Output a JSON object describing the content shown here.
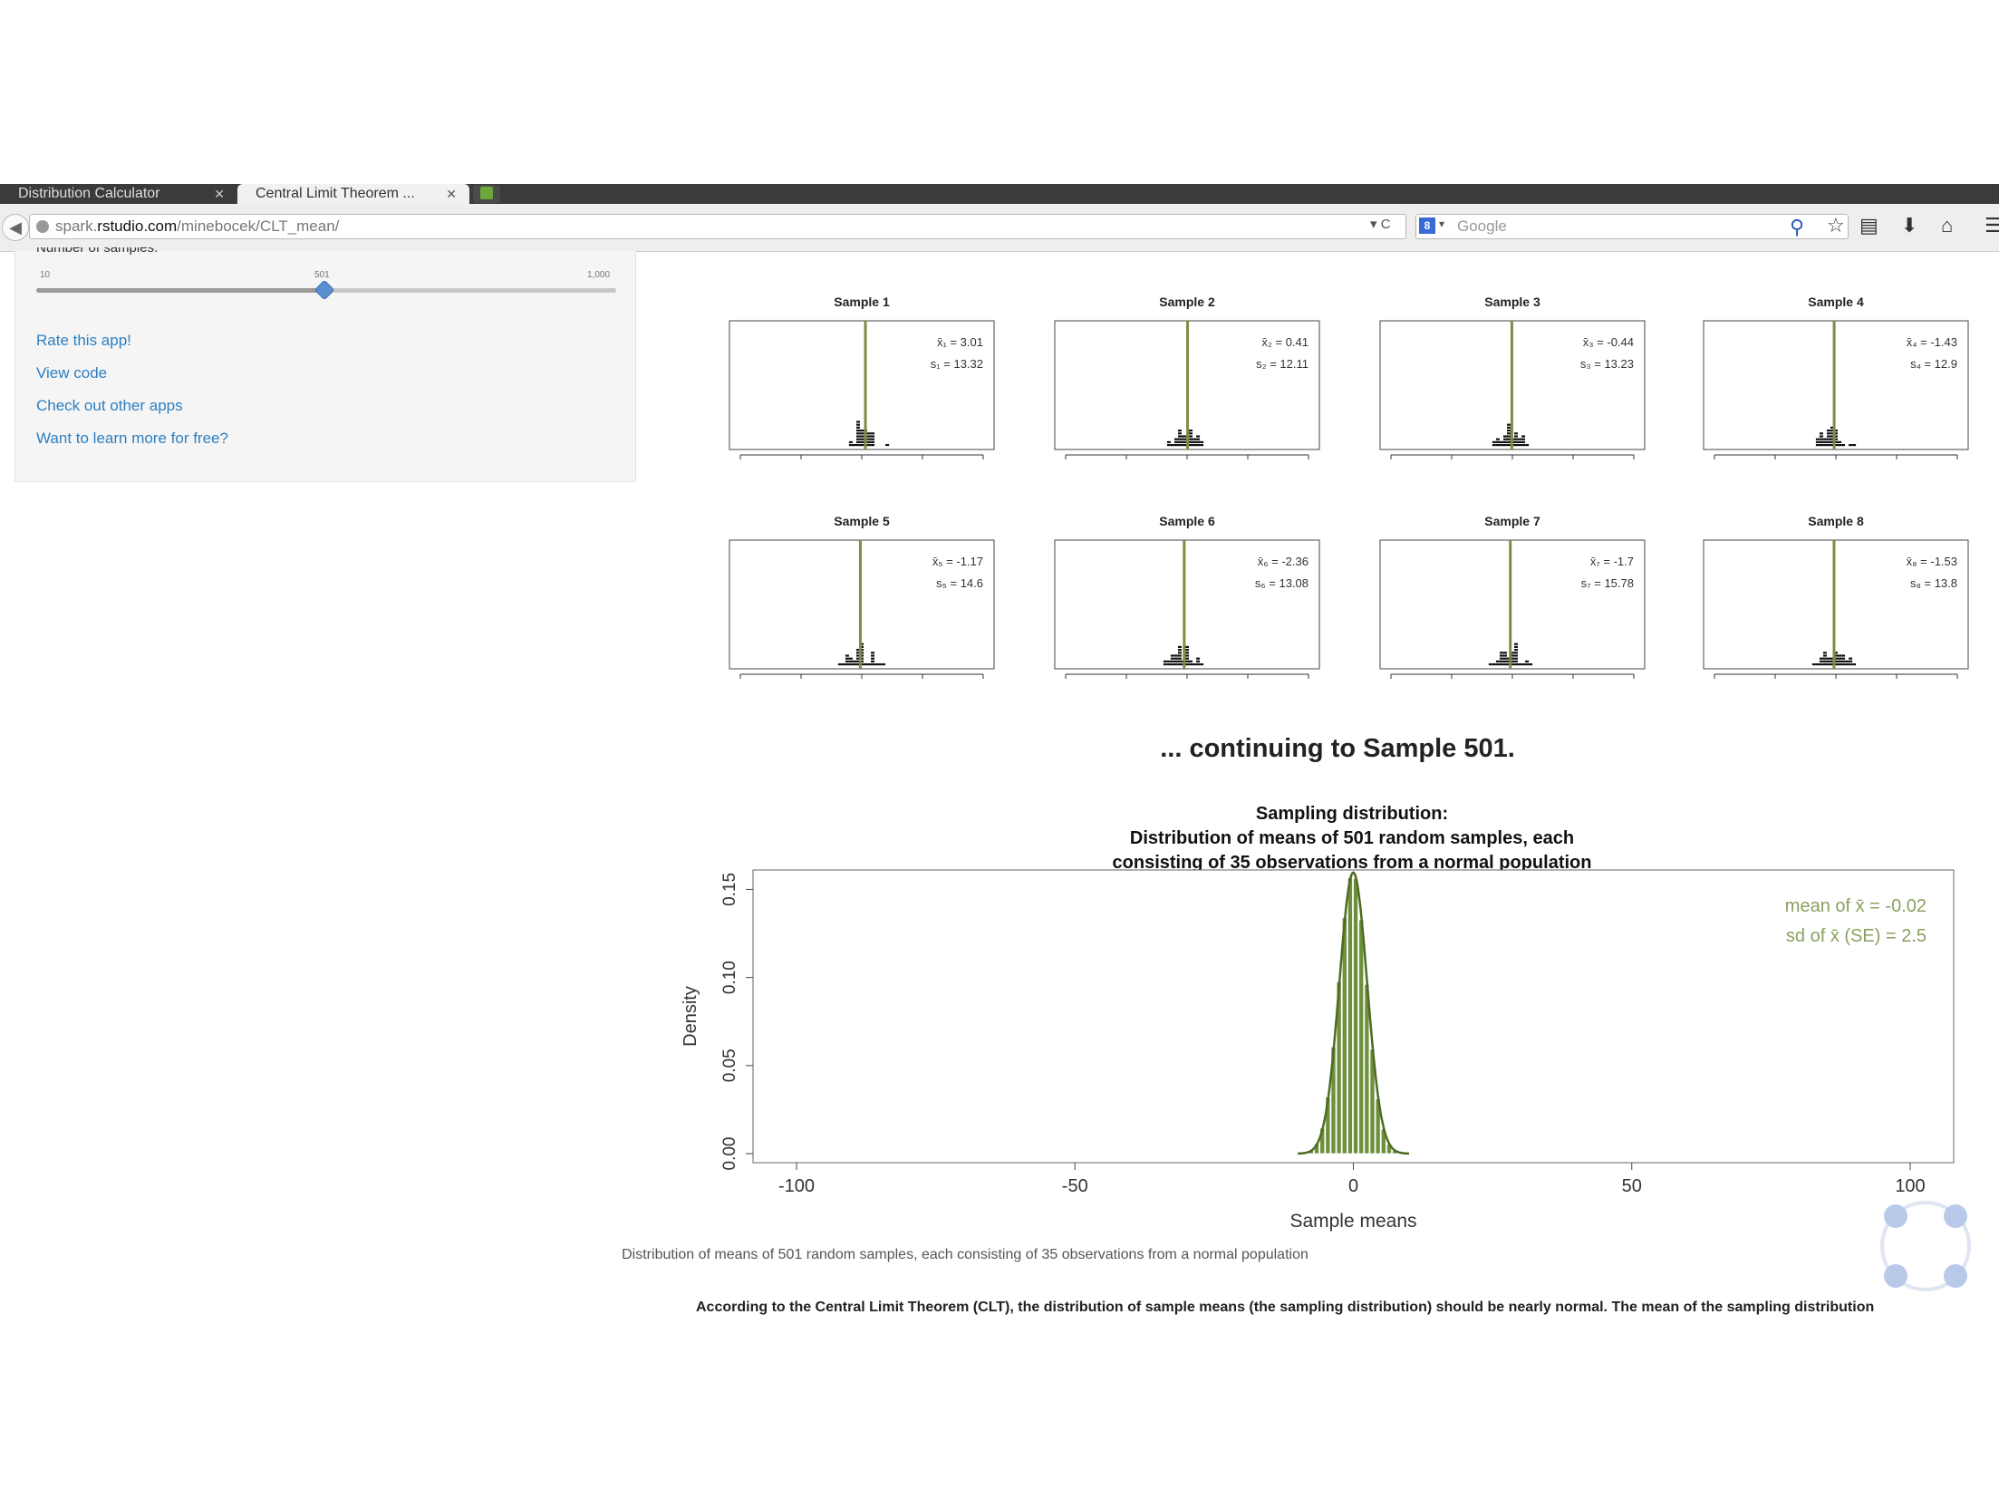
{
  "browser": {
    "tabs": [
      {
        "label": "Distribution Calculator",
        "close": "✕"
      },
      {
        "label": "Central Limit Theorem ...",
        "close": "✕"
      }
    ],
    "url_prefix": "spark.",
    "url_domain": "rstudio.com",
    "url_path": "/minebocek/CLT_mean/",
    "url_drop": "▾ C",
    "search_placeholder": "Google",
    "tools": [
      "☆",
      "▤",
      "⬇",
      "⌂",
      "☰"
    ]
  },
  "sidebar": {
    "label": "Number of samples:",
    "slider": {
      "min": "10",
      "value": "501",
      "max": "1,000",
      "min_value": 10,
      "max_value": 1000,
      "current": 501
    },
    "links": [
      "Rate this app!",
      "View code",
      "Check out other apps",
      "Want to learn more for free?"
    ]
  },
  "continuing_text": "... continuing to Sample 501.",
  "caption": "Distribution of means of 501 random samples, each consisting of 35 observations from a normal population",
  "bottom_text": "According to the Central Limit Theorem (CLT), the distribution of sample means (the sampling distribution) should be nearly normal. The mean of the sampling distribution",
  "chart_data": [
    {
      "type": "bar",
      "title": "Sample 1",
      "xlim": [
        -100,
        100
      ],
      "xticks": [
        "-100",
        "-50",
        "0",
        "50",
        "100"
      ],
      "mean_label": "x̄₁ = 3.01",
      "sd_label": "s₁ = 13.32",
      "mean": 3.01,
      "sd": 13.32
    },
    {
      "type": "bar",
      "title": "Sample 2",
      "xlim": [
        -100,
        100
      ],
      "xticks": [
        "-100",
        "-50",
        "0",
        "50",
        "100"
      ],
      "mean_label": "x̄₂ = 0.41",
      "sd_label": "s₂ = 12.11",
      "mean": 0.41,
      "sd": 12.11
    },
    {
      "type": "bar",
      "title": "Sample 3",
      "xlim": [
        -100,
        100
      ],
      "xticks": [
        "-100",
        "-50",
        "0",
        "50",
        "100"
      ],
      "mean_label": "x̄₃ = -0.44",
      "sd_label": "s₃ = 13.23",
      "mean": -0.44,
      "sd": 13.23
    },
    {
      "type": "bar",
      "title": "Sample 4",
      "xlim": [
        -100,
        100
      ],
      "xticks": [
        "-100",
        "-50",
        "0",
        "50",
        "100"
      ],
      "mean_label": "x̄₄ = -1.43",
      "sd_label": "s₄ = 12.9",
      "mean": -1.43,
      "sd": 12.9
    },
    {
      "type": "bar",
      "title": "Sample 5",
      "xlim": [
        -100,
        100
      ],
      "xticks": [
        "-100",
        "-50",
        "0",
        "50",
        "100"
      ],
      "mean_label": "x̄₅ = -1.17",
      "sd_label": "s₅ = 14.6",
      "mean": -1.17,
      "sd": 14.6
    },
    {
      "type": "bar",
      "title": "Sample 6",
      "xlim": [
        -100,
        100
      ],
      "xticks": [
        "-100",
        "-50",
        "0",
        "50",
        "100"
      ],
      "mean_label": "x̄₆ = -2.36",
      "sd_label": "s₆ = 13.08",
      "mean": -2.36,
      "sd": 13.08
    },
    {
      "type": "bar",
      "title": "Sample 7",
      "xlim": [
        -100,
        100
      ],
      "xticks": [
        "-100",
        "-50",
        "0",
        "50",
        "100"
      ],
      "mean_label": "x̄₇ = -1.7",
      "sd_label": "s₇ = 15.78",
      "mean": -1.7,
      "sd": 15.78
    },
    {
      "type": "bar",
      "title": "Sample 8",
      "xlim": [
        -100,
        100
      ],
      "xticks": [
        "-100",
        "-50",
        "0",
        "50",
        "100"
      ],
      "mean_label": "x̄₈ = -1.53",
      "sd_label": "s₈ = 13.8",
      "mean": -1.53,
      "sd": 13.8
    },
    {
      "type": "bar",
      "title_lines": [
        "Sampling distribution:",
        "Distribution of means of 501 random samples, each",
        "consisting of 35 observations from a normal population"
      ],
      "xlabel": "Sample means",
      "ylabel": "Density",
      "xlim": [
        -100,
        100
      ],
      "ylim": [
        0,
        0.16
      ],
      "xticks": [
        "-100",
        "-50",
        "0",
        "50",
        "100"
      ],
      "yticks": [
        "0.00",
        "0.05",
        "0.10",
        "0.15"
      ],
      "annotations": [
        "mean of  x̄ = -0.02",
        "sd of  x̄ (SE) = 2.5"
      ],
      "mean": -0.02,
      "se": 2.5,
      "color": "#6e8f3c"
    }
  ]
}
